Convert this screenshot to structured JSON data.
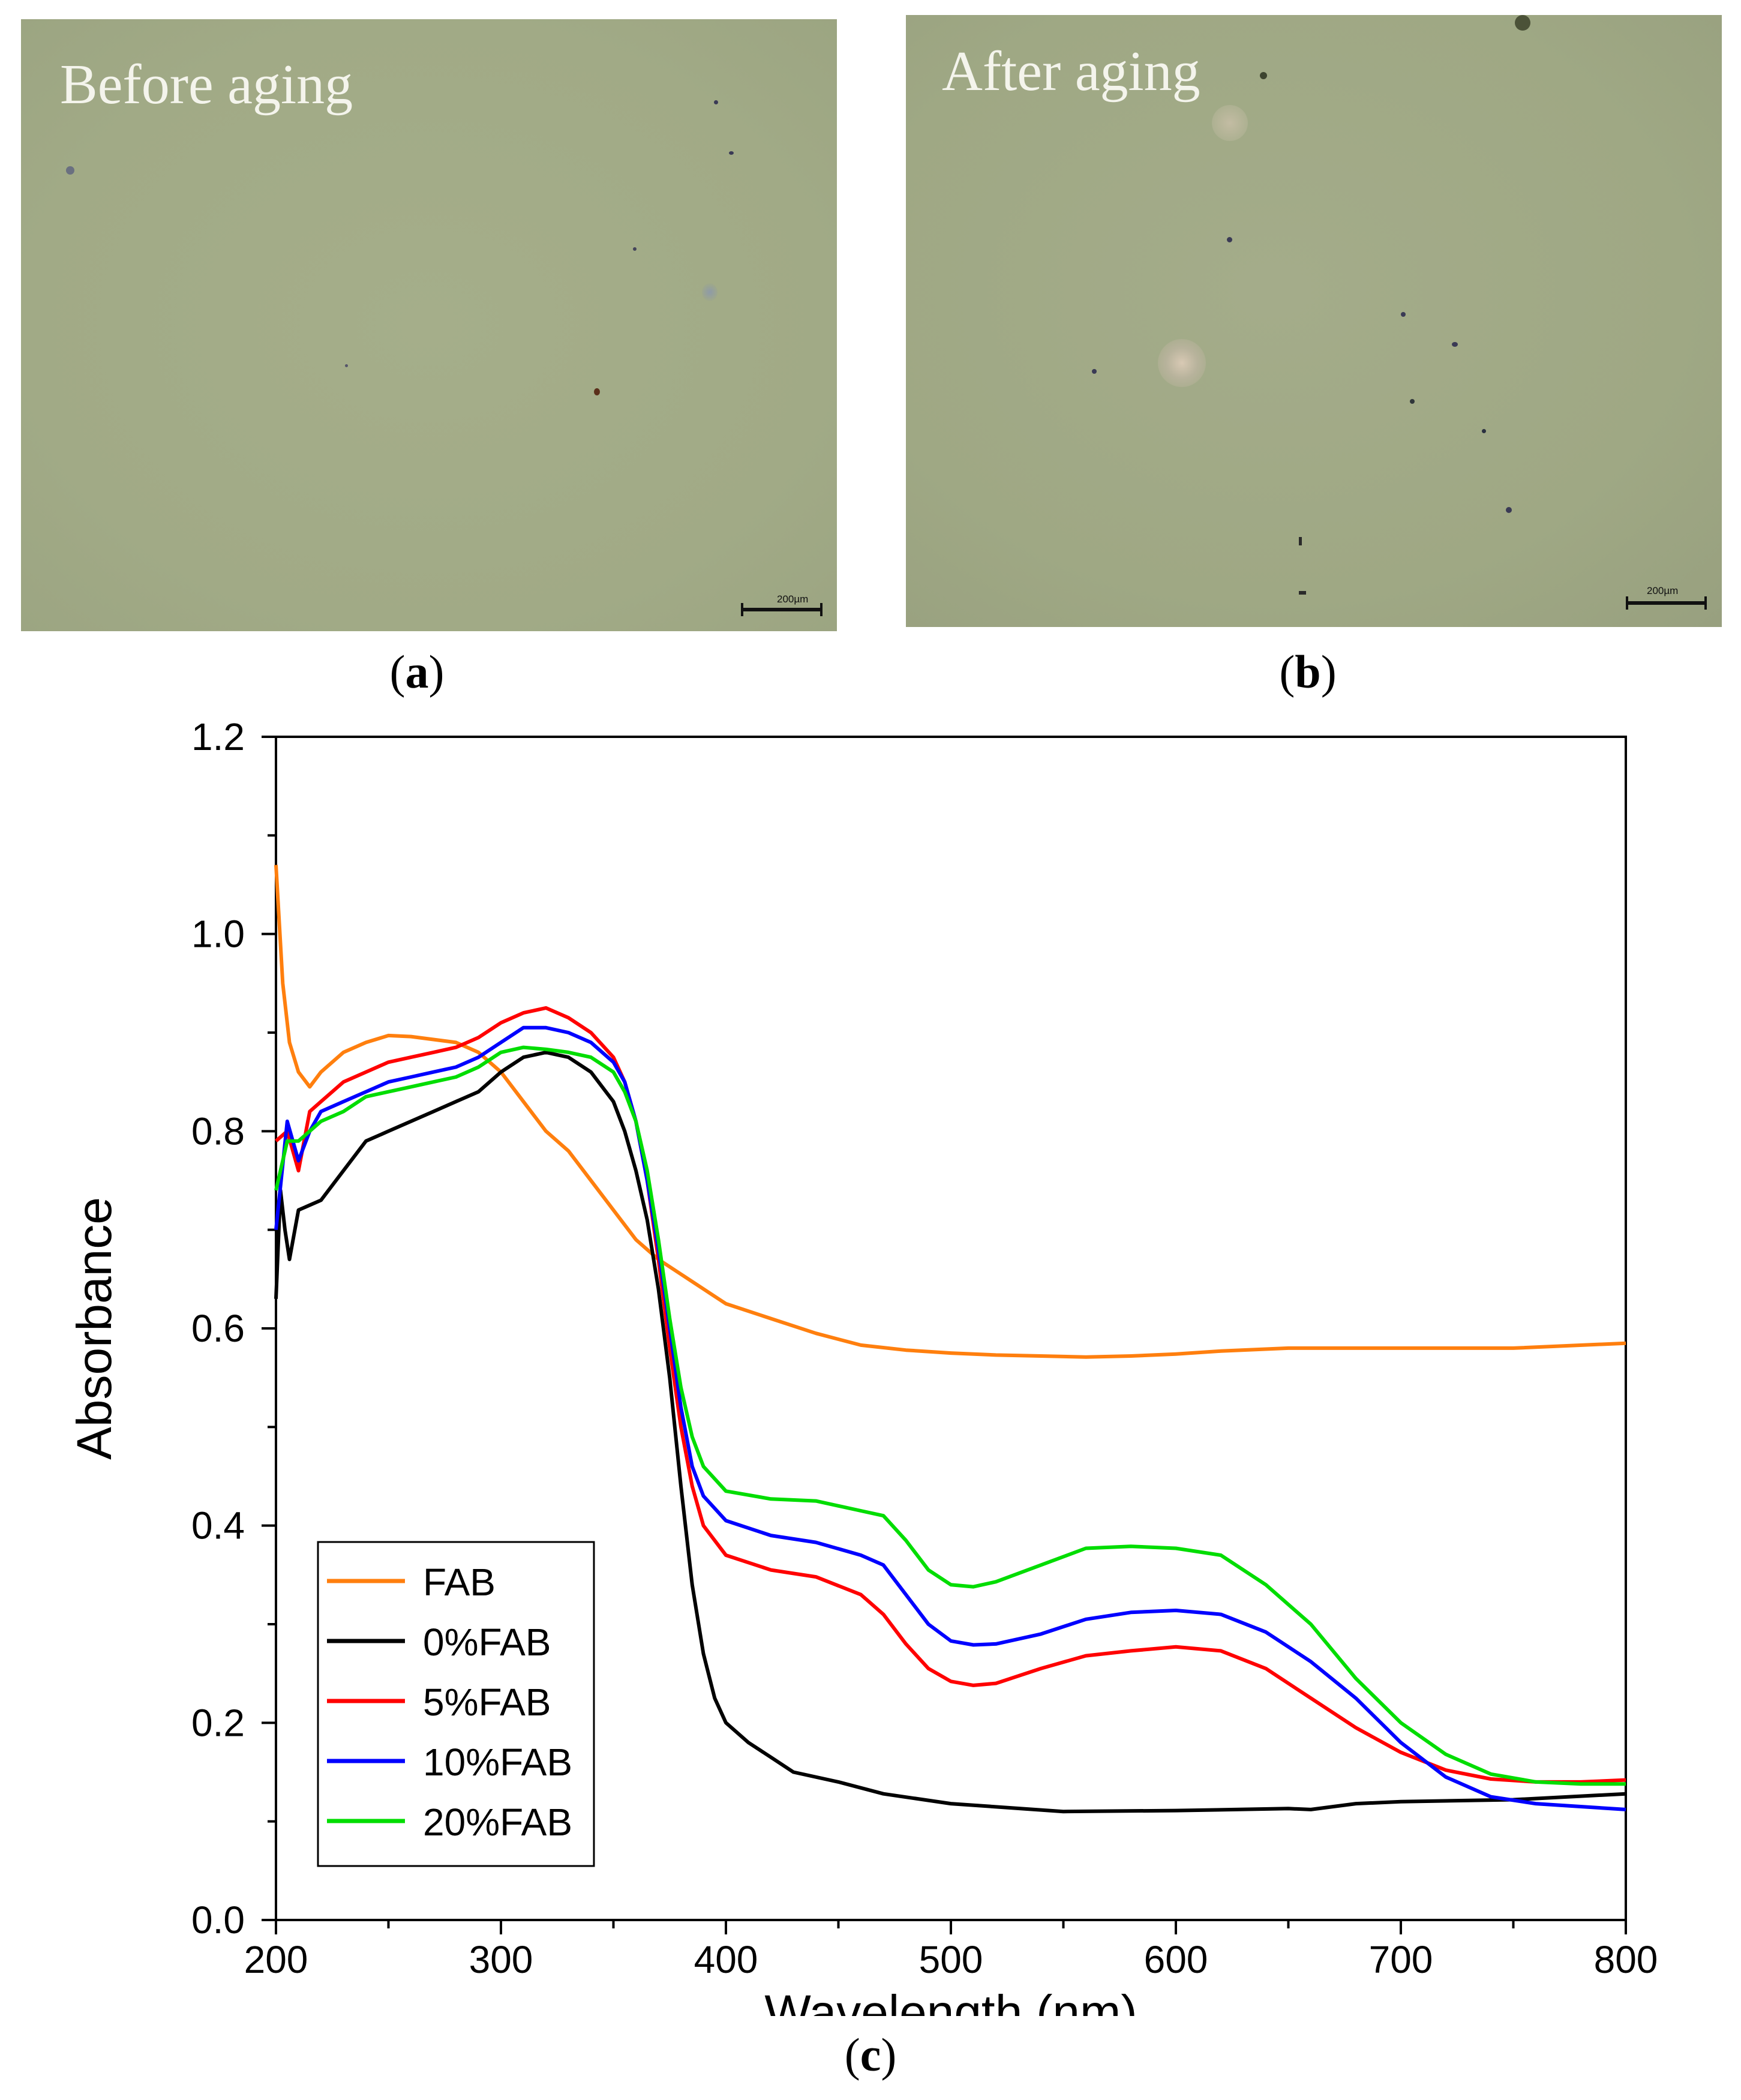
{
  "panels": {
    "a": {
      "overlay_text": "Before aging",
      "scale_label": "200µm",
      "open": "(",
      "letter": "a",
      "close": ")"
    },
    "b": {
      "overlay_text": "After aging",
      "scale_label": "200µm",
      "open": "(",
      "letter": "b",
      "close": ")"
    },
    "c": {
      "open": "(",
      "letter": "c",
      "close": ")"
    }
  },
  "chart_data": {
    "type": "line",
    "title": "",
    "xlabel": "Wavelength (nm)",
    "ylabel": "Absorbance",
    "xlim": [
      200,
      800
    ],
    "ylim": [
      0.0,
      1.2
    ],
    "xticks": [
      200,
      300,
      400,
      500,
      600,
      700,
      800
    ],
    "yticks": [
      0.0,
      0.2,
      0.4,
      0.6,
      0.8,
      1.0,
      1.2
    ],
    "ytick_labels": [
      "0.0",
      "0.2",
      "0.4",
      "0.6",
      "0.8",
      "1.0",
      "1.2"
    ],
    "legend_position": "bottom-left",
    "series": [
      {
        "name": "FAB",
        "color": "#ff7f0e",
        "points": [
          [
            200,
            1.07
          ],
          [
            203,
            0.95
          ],
          [
            206,
            0.89
          ],
          [
            210,
            0.86
          ],
          [
            215,
            0.845
          ],
          [
            220,
            0.86
          ],
          [
            230,
            0.88
          ],
          [
            240,
            0.89
          ],
          [
            250,
            0.897
          ],
          [
            260,
            0.896
          ],
          [
            270,
            0.893
          ],
          [
            280,
            0.89
          ],
          [
            290,
            0.88
          ],
          [
            300,
            0.86
          ],
          [
            310,
            0.83
          ],
          [
            320,
            0.8
          ],
          [
            330,
            0.78
          ],
          [
            340,
            0.75
          ],
          [
            350,
            0.72
          ],
          [
            360,
            0.69
          ],
          [
            370,
            0.67
          ],
          [
            380,
            0.655
          ],
          [
            390,
            0.64
          ],
          [
            400,
            0.625
          ],
          [
            420,
            0.61
          ],
          [
            440,
            0.595
          ],
          [
            460,
            0.583
          ],
          [
            480,
            0.578
          ],
          [
            500,
            0.575
          ],
          [
            520,
            0.573
          ],
          [
            540,
            0.572
          ],
          [
            560,
            0.571
          ],
          [
            580,
            0.572
          ],
          [
            600,
            0.574
          ],
          [
            620,
            0.577
          ],
          [
            650,
            0.58
          ],
          [
            700,
            0.58
          ],
          [
            750,
            0.58
          ],
          [
            800,
            0.585
          ]
        ]
      },
      {
        "name": "0%FAB",
        "color": "#000000",
        "points": [
          [
            200,
            0.63
          ],
          [
            202,
            0.74
          ],
          [
            204,
            0.7
          ],
          [
            206,
            0.67
          ],
          [
            210,
            0.72
          ],
          [
            220,
            0.73
          ],
          [
            230,
            0.76
          ],
          [
            240,
            0.79
          ],
          [
            250,
            0.8
          ],
          [
            260,
            0.81
          ],
          [
            270,
            0.82
          ],
          [
            280,
            0.83
          ],
          [
            290,
            0.84
          ],
          [
            300,
            0.86
          ],
          [
            310,
            0.875
          ],
          [
            320,
            0.88
          ],
          [
            330,
            0.875
          ],
          [
            340,
            0.86
          ],
          [
            350,
            0.83
          ],
          [
            355,
            0.8
          ],
          [
            360,
            0.76
          ],
          [
            365,
            0.71
          ],
          [
            370,
            0.64
          ],
          [
            375,
            0.55
          ],
          [
            380,
            0.44
          ],
          [
            385,
            0.34
          ],
          [
            390,
            0.27
          ],
          [
            395,
            0.225
          ],
          [
            400,
            0.2
          ],
          [
            410,
            0.18
          ],
          [
            420,
            0.165
          ],
          [
            430,
            0.15
          ],
          [
            450,
            0.14
          ],
          [
            470,
            0.128
          ],
          [
            500,
            0.118
          ],
          [
            550,
            0.11
          ],
          [
            600,
            0.111
          ],
          [
            650,
            0.113
          ],
          [
            660,
            0.112
          ],
          [
            680,
            0.118
          ],
          [
            700,
            0.12
          ],
          [
            750,
            0.122
          ],
          [
            800,
            0.128
          ]
        ]
      },
      {
        "name": "5%FAB",
        "color": "#ff0000",
        "points": [
          [
            200,
            0.79
          ],
          [
            205,
            0.8
          ],
          [
            210,
            0.76
          ],
          [
            215,
            0.82
          ],
          [
            220,
            0.83
          ],
          [
            230,
            0.85
          ],
          [
            240,
            0.86
          ],
          [
            250,
            0.87
          ],
          [
            260,
            0.875
          ],
          [
            270,
            0.88
          ],
          [
            280,
            0.885
          ],
          [
            290,
            0.895
          ],
          [
            300,
            0.91
          ],
          [
            310,
            0.92
          ],
          [
            320,
            0.925
          ],
          [
            330,
            0.915
          ],
          [
            340,
            0.9
          ],
          [
            350,
            0.875
          ],
          [
            355,
            0.85
          ],
          [
            360,
            0.81
          ],
          [
            365,
            0.75
          ],
          [
            370,
            0.67
          ],
          [
            375,
            0.58
          ],
          [
            380,
            0.5
          ],
          [
            385,
            0.44
          ],
          [
            390,
            0.4
          ],
          [
            400,
            0.37
          ],
          [
            420,
            0.355
          ],
          [
            440,
            0.348
          ],
          [
            460,
            0.33
          ],
          [
            470,
            0.31
          ],
          [
            480,
            0.28
          ],
          [
            490,
            0.255
          ],
          [
            500,
            0.242
          ],
          [
            510,
            0.238
          ],
          [
            520,
            0.24
          ],
          [
            540,
            0.255
          ],
          [
            560,
            0.268
          ],
          [
            580,
            0.273
          ],
          [
            600,
            0.277
          ],
          [
            620,
            0.273
          ],
          [
            640,
            0.255
          ],
          [
            660,
            0.225
          ],
          [
            680,
            0.195
          ],
          [
            700,
            0.17
          ],
          [
            720,
            0.152
          ],
          [
            740,
            0.143
          ],
          [
            760,
            0.14
          ],
          [
            780,
            0.14
          ],
          [
            800,
            0.142
          ]
        ]
      },
      {
        "name": "10%FAB",
        "color": "#0000ff",
        "points": [
          [
            200,
            0.7
          ],
          [
            205,
            0.81
          ],
          [
            210,
            0.77
          ],
          [
            215,
            0.8
          ],
          [
            220,
            0.82
          ],
          [
            230,
            0.83
          ],
          [
            240,
            0.84
          ],
          [
            250,
            0.85
          ],
          [
            260,
            0.855
          ],
          [
            270,
            0.86
          ],
          [
            280,
            0.865
          ],
          [
            290,
            0.875
          ],
          [
            300,
            0.89
          ],
          [
            310,
            0.905
          ],
          [
            320,
            0.905
          ],
          [
            330,
            0.9
          ],
          [
            340,
            0.89
          ],
          [
            350,
            0.87
          ],
          [
            355,
            0.85
          ],
          [
            360,
            0.81
          ],
          [
            365,
            0.75
          ],
          [
            370,
            0.68
          ],
          [
            375,
            0.6
          ],
          [
            380,
            0.52
          ],
          [
            385,
            0.46
          ],
          [
            390,
            0.43
          ],
          [
            400,
            0.405
          ],
          [
            420,
            0.39
          ],
          [
            440,
            0.383
          ],
          [
            460,
            0.37
          ],
          [
            470,
            0.36
          ],
          [
            480,
            0.33
          ],
          [
            490,
            0.3
          ],
          [
            500,
            0.283
          ],
          [
            510,
            0.279
          ],
          [
            520,
            0.28
          ],
          [
            540,
            0.29
          ],
          [
            560,
            0.305
          ],
          [
            580,
            0.312
          ],
          [
            600,
            0.314
          ],
          [
            620,
            0.31
          ],
          [
            640,
            0.292
          ],
          [
            660,
            0.262
          ],
          [
            680,
            0.225
          ],
          [
            700,
            0.18
          ],
          [
            720,
            0.145
          ],
          [
            740,
            0.125
          ],
          [
            760,
            0.118
          ],
          [
            780,
            0.115
          ],
          [
            800,
            0.112
          ]
        ]
      },
      {
        "name": "20%FAB",
        "color": "#00dd00",
        "points": [
          [
            200,
            0.74
          ],
          [
            205,
            0.79
          ],
          [
            210,
            0.79
          ],
          [
            215,
            0.8
          ],
          [
            220,
            0.81
          ],
          [
            230,
            0.82
          ],
          [
            240,
            0.835
          ],
          [
            250,
            0.84
          ],
          [
            260,
            0.845
          ],
          [
            270,
            0.85
          ],
          [
            280,
            0.855
          ],
          [
            290,
            0.865
          ],
          [
            300,
            0.88
          ],
          [
            310,
            0.885
          ],
          [
            320,
            0.883
          ],
          [
            330,
            0.88
          ],
          [
            340,
            0.875
          ],
          [
            350,
            0.86
          ],
          [
            355,
            0.84
          ],
          [
            360,
            0.81
          ],
          [
            365,
            0.76
          ],
          [
            370,
            0.69
          ],
          [
            375,
            0.61
          ],
          [
            380,
            0.54
          ],
          [
            385,
            0.49
          ],
          [
            390,
            0.46
          ],
          [
            400,
            0.435
          ],
          [
            420,
            0.427
          ],
          [
            440,
            0.425
          ],
          [
            460,
            0.415
          ],
          [
            470,
            0.41
          ],
          [
            480,
            0.385
          ],
          [
            490,
            0.355
          ],
          [
            500,
            0.34
          ],
          [
            510,
            0.338
          ],
          [
            520,
            0.343
          ],
          [
            540,
            0.36
          ],
          [
            560,
            0.377
          ],
          [
            580,
            0.379
          ],
          [
            600,
            0.377
          ],
          [
            620,
            0.37
          ],
          [
            640,
            0.34
          ],
          [
            660,
            0.3
          ],
          [
            680,
            0.245
          ],
          [
            700,
            0.2
          ],
          [
            720,
            0.168
          ],
          [
            740,
            0.148
          ],
          [
            760,
            0.14
          ],
          [
            780,
            0.138
          ],
          [
            800,
            0.138
          ]
        ]
      }
    ]
  }
}
